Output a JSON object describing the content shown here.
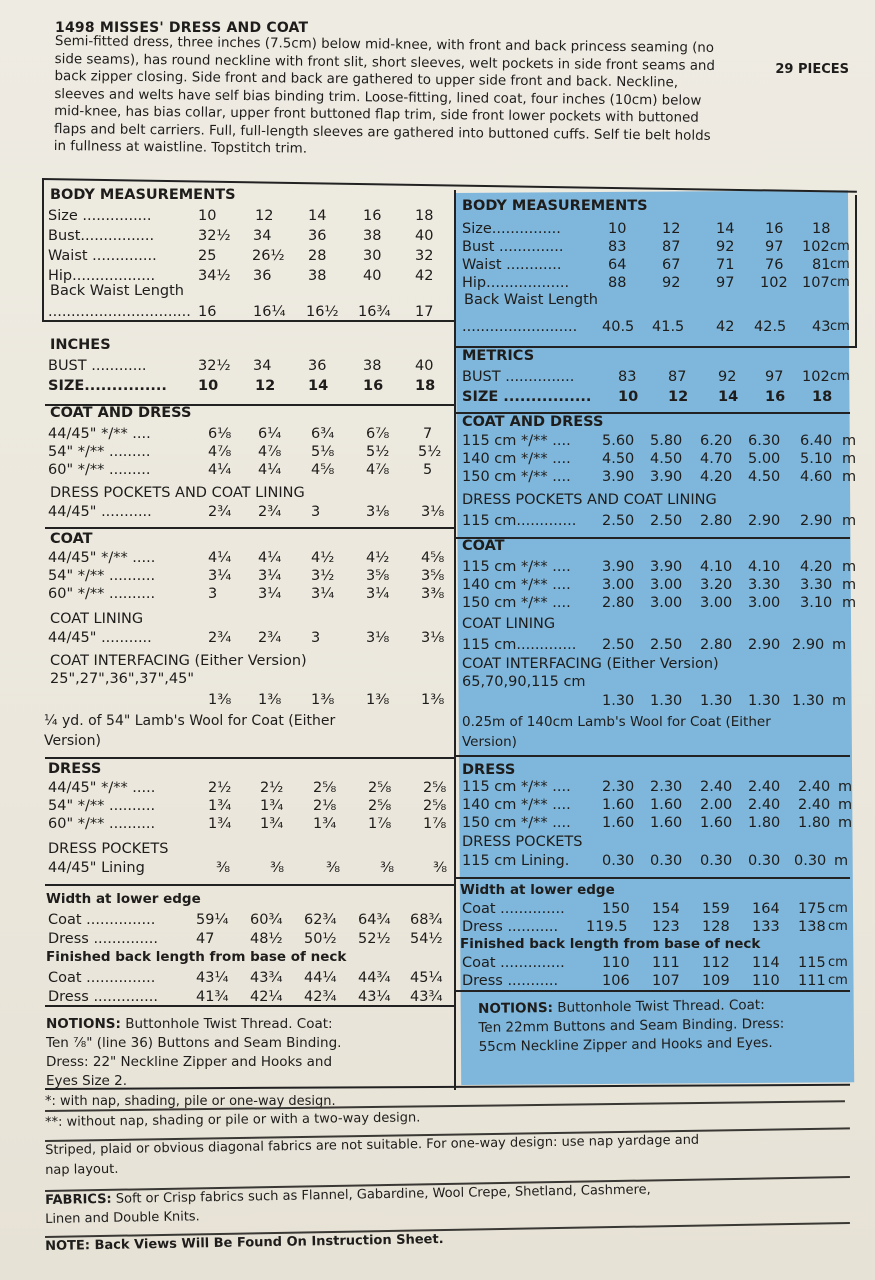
{
  "header": {
    "title": "1498 MISSES' DRESS AND COAT",
    "pieces": "29 PIECES",
    "description_lines": [
      "Semi-fitted dress, three inches (7.5cm) below mid-knee, with front and back princess seaming (no",
      "side seams), has round neckline with front slit, short sleeves, welt pockets in side front seams and",
      "back zipper closing. Side front and back are gathered to upper side front and back. Neckline,",
      "sleeves and welts have self bias binding trim. Loose-fitting, lined coat, four inches (10cm) below",
      "mid-knee, has bias collar, upper front buttoned flap trim, side front lower pockets with buttoned",
      "flaps and belt carriers. Full, full-length sleeves are gathered into buttoned cuffs. Self tie belt holds",
      "in fullness at waistline. Topstitch trim."
    ]
  },
  "left": {
    "body_title": "BODY MEASUREMENTS",
    "body_rows": [
      {
        "label": "Size ...............",
        "vals": [
          "10",
          "12",
          "14",
          "16",
          "18"
        ]
      },
      {
        "label": "Bust................",
        "vals": [
          "32½",
          "34",
          "36",
          "38",
          "40"
        ]
      },
      {
        "label": "Waist ..............",
        "vals": [
          "25",
          "26½",
          "28",
          "30",
          "32"
        ]
      },
      {
        "label": "Hip..................",
        "vals": [
          "34½",
          "36",
          "38",
          "40",
          "42"
        ]
      }
    ],
    "back_waist_label": "Back Waist Length",
    "back_waist_dots": "...............................",
    "back_waist_vals": [
      "16",
      "16¼",
      "16½",
      "16¾",
      "17"
    ],
    "inches_title": "INCHES",
    "inches_bust_label": "BUST ............",
    "inches_bust_vals": [
      "32½",
      "34",
      "36",
      "38",
      "40"
    ],
    "inches_size_label": "SIZE...............",
    "inches_size_vals": [
      "10",
      "12",
      "14",
      "16",
      "18"
    ],
    "coat_dress_title": "COAT AND DRESS",
    "coat_dress_rows": [
      {
        "label": "44/45\" */** ....",
        "vals": [
          "6⅛",
          "6¼",
          "6¾",
          "6⅞",
          "7"
        ]
      },
      {
        "label": "54\" */** .........",
        "vals": [
          "4⅞",
          "4⅞",
          "5⅛",
          "5½",
          "5½"
        ]
      },
      {
        "label": "60\" */** .........",
        "vals": [
          "4¼",
          "4¼",
          "4⅝",
          "4⅞",
          "5"
        ]
      }
    ],
    "dress_pockets_lining_title": "DRESS POCKETS AND COAT LINING",
    "dress_pockets_lining_row": {
      "label": "44/45\" ...........",
      "vals": [
        "2¾",
        "2¾",
        "3",
        "3⅛",
        "3⅛"
      ]
    },
    "coat_title": "COAT",
    "coat_rows": [
      {
        "label": "44/45\" */** .....",
        "vals": [
          "4¼",
          "4¼",
          "4½",
          "4½",
          "4⅝"
        ]
      },
      {
        "label": "54\" */** ..........",
        "vals": [
          "3¼",
          "3¼",
          "3½",
          "3⅝",
          "3⅝"
        ]
      },
      {
        "label": "60\" */** ..........",
        "vals": [
          "3",
          "3¼",
          "3¼",
          "3¼",
          "3⅜"
        ]
      }
    ],
    "coat_lining_title": "COAT LINING",
    "coat_lining_row": {
      "label": "44/45\" ...........",
      "vals": [
        "2¾",
        "2¾",
        "3",
        "3⅛",
        "3⅛"
      ]
    },
    "coat_interfacing_title": "COAT INTERFACING (Either Version)",
    "coat_interfacing_widths": "25\",27\",36\",37\",45\"",
    "coat_interfacing_vals": [
      "1⅜",
      "1⅜",
      "1⅜",
      "1⅜",
      "1⅜"
    ],
    "lambs_wool_line1": "¼ yd. of 54\" Lamb's Wool for Coat (Either",
    "lambs_wool_line2": "Version)",
    "dress_title": "DRESS",
    "dress_rows": [
      {
        "label": "44/45\" */** .....",
        "vals": [
          "2½",
          "2½",
          "2⅝",
          "2⅝",
          "2⅝"
        ]
      },
      {
        "label": "54\" */** ..........",
        "vals": [
          "1¾",
          "1¾",
          "2⅛",
          "2⅝",
          "2⅝"
        ]
      },
      {
        "label": "60\" */** ..........",
        "vals": [
          "1¾",
          "1¾",
          "1¾",
          "1⅞",
          "1⅞"
        ]
      }
    ],
    "dress_pockets_title": "DRESS POCKETS",
    "dress_pockets_row": {
      "label": "44/45\" Lining",
      "vals": [
        "⅜",
        "⅜",
        "⅜",
        "⅜",
        "⅜"
      ]
    },
    "width_title": "Width at lower edge",
    "width_rows": [
      {
        "label": "Coat ...............",
        "vals": [
          "59¼",
          "60¾",
          "62¾",
          "64¾",
          "68¾"
        ]
      },
      {
        "label": "Dress ..............",
        "vals": [
          "47",
          "48½",
          "50½",
          "52½",
          "54½"
        ]
      }
    ],
    "finished_title": "Finished back length from base of neck",
    "finished_rows": [
      {
        "label": "Coat ...............",
        "vals": [
          "43¼",
          "43¾",
          "44¼",
          "44¾",
          "45¼"
        ]
      },
      {
        "label": "Dress ..............",
        "vals": [
          "41¾",
          "42¼",
          "42¾",
          "43¼",
          "43¾"
        ]
      }
    ],
    "notions_label": "NOTIONS:",
    "notions_lines": [
      " Buttonhole Twist Thread. Coat:",
      "Ten ⅞\" (line 36) Buttons and Seam Binding.",
      "Dress: 22\" Neckline Zipper and Hooks and",
      "Eyes Size 2."
    ]
  },
  "right": {
    "body_title": "BODY MEASUREMENTS",
    "body_rows": [
      {
        "label": "Size...............",
        "vals": [
          "10",
          "12",
          "14",
          "16",
          "18"
        ],
        "unit": ""
      },
      {
        "label": "Bust ..............",
        "vals": [
          "83",
          "87",
          "92",
          "97",
          "102"
        ],
        "unit": "cm"
      },
      {
        "label": "Waist ............",
        "vals": [
          "64",
          "67",
          "71",
          "76",
          "81"
        ],
        "unit": "cm"
      },
      {
        "label": "Hip..................",
        "vals": [
          "88",
          "92",
          "97",
          "102",
          "107"
        ],
        "unit": "cm"
      }
    ],
    "back_waist_label": "Back Waist Length",
    "back_waist_dots": ".........................",
    "back_waist_vals": [
      "40.5",
      "41.5",
      "42",
      "42.5",
      "43"
    ],
    "back_waist_unit": "cm",
    "metrics_title": "METRICS",
    "metrics_bust_label": "BUST ...............",
    "metrics_bust_vals": [
      "83",
      "87",
      "92",
      "97",
      "102"
    ],
    "metrics_bust_unit": "cm",
    "metrics_size_label": "SIZE ................",
    "metrics_size_vals": [
      "10",
      "12",
      "14",
      "16",
      "18"
    ],
    "coat_dress_title": "COAT AND DRESS",
    "coat_dress_rows": [
      {
        "label": "115 cm */** ....",
        "vals": [
          "5.60",
          "5.80",
          "6.20",
          "6.30",
          "6.40"
        ],
        "unit": "m"
      },
      {
        "label": "140 cm */** ....",
        "vals": [
          "4.50",
          "4.50",
          "4.70",
          "5.00",
          "5.10"
        ],
        "unit": "m"
      },
      {
        "label": "150 cm */** ....",
        "vals": [
          "3.90",
          "3.90",
          "4.20",
          "4.50",
          "4.60"
        ],
        "unit": "m"
      }
    ],
    "dress_pockets_lining_title": "DRESS POCKETS AND COAT LINING",
    "dress_pockets_lining_row": {
      "label": "115 cm.............",
      "vals": [
        "2.50",
        "2.50",
        "2.80",
        "2.90",
        "2.90"
      ],
      "unit": "m"
    },
    "coat_title": "COAT",
    "coat_rows": [
      {
        "label": "115 cm */** ....",
        "vals": [
          "3.90",
          "3.90",
          "4.10",
          "4.10",
          "4.20"
        ],
        "unit": "m"
      },
      {
        "label": "140 cm */** ....",
        "vals": [
          "3.00",
          "3.00",
          "3.20",
          "3.30",
          "3.30"
        ],
        "unit": "m"
      },
      {
        "label": "150 cm */** ....",
        "vals": [
          "2.80",
          "3.00",
          "3.00",
          "3.00",
          "3.10"
        ],
        "unit": "m"
      }
    ],
    "coat_lining_title": "COAT LINING",
    "coat_lining_row": {
      "label": "115 cm.............",
      "vals": [
        "2.50",
        "2.50",
        "2.80",
        "2.90",
        "2.90"
      ],
      "unit": "m"
    },
    "coat_interfacing_title": "COAT INTERFACING (Either Version)",
    "coat_interfacing_widths": "65,70,90,115 cm",
    "coat_interfacing_vals": [
      "1.30",
      "1.30",
      "1.30",
      "1.30",
      "1.30"
    ],
    "coat_interfacing_unit": "m",
    "lambs_wool_line1": "0.25m of 140cm Lamb's Wool for Coat (Either",
    "lambs_wool_line2": "Version)",
    "dress_title": "DRESS",
    "dress_rows": [
      {
        "label": "115 cm */** ....",
        "vals": [
          "2.30",
          "2.30",
          "2.40",
          "2.40",
          "2.40"
        ],
        "unit": "m"
      },
      {
        "label": "140 cm */** ....",
        "vals": [
          "1.60",
          "1.60",
          "2.00",
          "2.40",
          "2.40"
        ],
        "unit": "m"
      },
      {
        "label": "150 cm */** ....",
        "vals": [
          "1.60",
          "1.60",
          "1.60",
          "1.80",
          "1.80"
        ],
        "unit": "m"
      }
    ],
    "dress_pockets_title": "DRESS POCKETS",
    "dress_pockets_row": {
      "label": "115 cm Lining.",
      "vals": [
        "0.30",
        "0.30",
        "0.30",
        "0.30",
        "0.30"
      ],
      "unit": "m"
    },
    "width_title": "Width at lower edge",
    "width_rows": [
      {
        "label": "Coat ..............",
        "vals": [
          "150",
          "154",
          "159",
          "164",
          "175"
        ],
        "unit": "cm"
      },
      {
        "label": "Dress ...........",
        "vals": [
          "119.5",
          "123",
          "128",
          "133",
          "138"
        ],
        "unit": "cm"
      }
    ],
    "finished_title": "Finished back length from base of neck",
    "finished_rows": [
      {
        "label": "Coat ..............",
        "vals": [
          "110",
          "111",
          "112",
          "114",
          "115"
        ],
        "unit": "cm"
      },
      {
        "label": "Dress ...........",
        "vals": [
          "106",
          "107",
          "109",
          "110",
          "111"
        ],
        "unit": "cm"
      }
    ],
    "notions_label": "NOTIONS:",
    "notions_lines": [
      " Buttonhole Twist Thread. Coat:",
      "Ten 22mm Buttons and Seam Binding. Dress:",
      "55cm Neckline Zipper and Hooks and Eyes."
    ]
  },
  "footer": {
    "nap1": "*: with nap, shading, pile or one-way design.",
    "nap2": "**: without nap, shading or pile or with a two-way design.",
    "striped1": "Striped, plaid or obvious diagonal fabrics are not suitable. For one-way design: use nap yardage and",
    "striped2": "nap layout.",
    "fabrics_label": "FABRICS:",
    "fabrics1": " Soft or Crisp fabrics such as Flannel, Gabardine, Wool Crepe, Shetland, Cashmere,",
    "fabrics2": "Linen and Double Knits.",
    "note_label": "NOTE:",
    "note_text": " Back Views Will Be Found On Instruction Sheet."
  },
  "colors": {
    "paper": "#ece8de",
    "metric_panel": "#7fb6db",
    "ink": "#1e1d1b"
  }
}
